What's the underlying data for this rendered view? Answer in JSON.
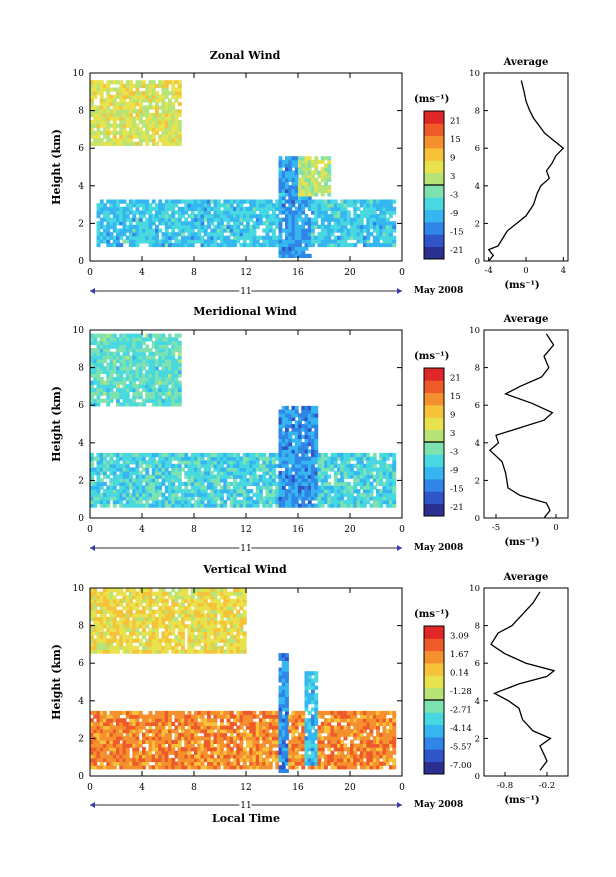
{
  "colors": {
    "scale": [
      "#2b2f8f",
      "#2f55c9",
      "#2f86e6",
      "#36b6f0",
      "#48d8e0",
      "#7ee2b0",
      "#b6e478",
      "#e8e24c",
      "#f6c23a",
      "#f5902e",
      "#ee5a2a",
      "#e02626"
    ]
  },
  "chart_data": [
    {
      "type": "heatmap",
      "title": "Zonal Wind",
      "ylabel": "Height (km)",
      "xlabel": "",
      "x_ticks": [
        "0",
        "4",
        "8",
        "12",
        "16",
        "20",
        "0"
      ],
      "y_ticks": [
        "0",
        "2",
        "4",
        "6",
        "8",
        "10"
      ],
      "xlim": [
        0,
        24
      ],
      "ylim": [
        0,
        10
      ],
      "date_axis_label": "11",
      "date_label": "May 2008",
      "colorbar": {
        "unit": "(ms⁻¹)",
        "ticks": [
          "21",
          "15",
          "9",
          "3",
          "-3",
          "-9",
          "-15",
          "-21"
        ],
        "range": [
          -24,
          24
        ]
      },
      "profile": {
        "title": "Average",
        "xlabel": "(ms⁻¹)",
        "x_ticks": [
          "-4",
          "0",
          "4"
        ],
        "xlim": [
          -4.5,
          4.5
        ],
        "y_ticks": [
          "0",
          "2",
          "4",
          "6",
          "8",
          "10"
        ],
        "points": [
          [
            -4,
            0
          ],
          [
            -3.5,
            0.3
          ],
          [
            -4,
            0.6
          ],
          [
            -3,
            0.8
          ],
          [
            -2.5,
            1.2
          ],
          [
            -2,
            1.6
          ],
          [
            -1,
            2
          ],
          [
            0,
            2.4
          ],
          [
            0.8,
            3
          ],
          [
            1.2,
            3.6
          ],
          [
            1.6,
            4
          ],
          [
            2.5,
            4.4
          ],
          [
            2.2,
            4.8
          ],
          [
            2.8,
            5.2
          ],
          [
            3.2,
            5.6
          ],
          [
            4,
            6
          ],
          [
            3,
            6.4
          ],
          [
            2,
            6.8
          ],
          [
            1.4,
            7.2
          ],
          [
            0.8,
            7.6
          ],
          [
            0.4,
            8
          ],
          [
            0,
            8.5
          ],
          [
            -0.2,
            9
          ],
          [
            -0.5,
            9.6
          ]
        ]
      },
      "cells_summary": [
        {
          "x": [
            0.5,
            23.5
          ],
          "y": [
            0.8,
            3.2
          ],
          "value": -8
        },
        {
          "x": [
            14.5,
            17
          ],
          "y": [
            0.2,
            5.5
          ],
          "value": -12
        },
        {
          "x": [
            0,
            7
          ],
          "y": [
            6.2,
            9.6
          ],
          "value": 5
        },
        {
          "x": [
            16,
            18.5
          ],
          "y": [
            3.5,
            5.5
          ],
          "value": 2
        }
      ]
    },
    {
      "type": "heatmap",
      "title": "Meridional Wind",
      "ylabel": "Height (km)",
      "xlabel": "",
      "x_ticks": [
        "0",
        "4",
        "8",
        "12",
        "16",
        "20",
        "0"
      ],
      "y_ticks": [
        "0",
        "2",
        "4",
        "6",
        "8",
        "10"
      ],
      "xlim": [
        0,
        24
      ],
      "ylim": [
        0,
        10
      ],
      "date_axis_label": "11",
      "date_label": "May 2008",
      "colorbar": {
        "unit": "(ms⁻¹)",
        "ticks": [
          "21",
          "15",
          "9",
          "3",
          "-3",
          "-9",
          "-15",
          "-21"
        ],
        "range": [
          -24,
          24
        ]
      },
      "profile": {
        "title": "Average",
        "xlabel": "(ms⁻¹)",
        "x_ticks": [
          "-5",
          "0"
        ],
        "xlim": [
          -6,
          1
        ],
        "y_ticks": [
          "0",
          "2",
          "4",
          "6",
          "8",
          "10"
        ],
        "points": [
          [
            -1,
            0
          ],
          [
            -0.5,
            0.4
          ],
          [
            -0.8,
            0.8
          ],
          [
            -3,
            1.2
          ],
          [
            -4,
            1.6
          ],
          [
            -4.2,
            2.4
          ],
          [
            -4.5,
            3
          ],
          [
            -5.5,
            3.6
          ],
          [
            -4.8,
            4
          ],
          [
            -5,
            4.4
          ],
          [
            -3,
            4.8
          ],
          [
            -1,
            5.2
          ],
          [
            -0.3,
            5.6
          ],
          [
            -2,
            6.1
          ],
          [
            -4.2,
            6.6
          ],
          [
            -3,
            7
          ],
          [
            -1.2,
            7.5
          ],
          [
            -0.6,
            8
          ],
          [
            -1,
            8.6
          ],
          [
            -0.2,
            9.2
          ],
          [
            -0.8,
            9.8
          ]
        ]
      },
      "cells_summary": [
        {
          "x": [
            0,
            23.5
          ],
          "y": [
            0.6,
            3.5
          ],
          "value": -6
        },
        {
          "x": [
            14.5,
            17.5
          ],
          "y": [
            0.5,
            6
          ],
          "value": -13
        },
        {
          "x": [
            0,
            7
          ],
          "y": [
            6,
            9.8
          ],
          "value": -4
        }
      ]
    },
    {
      "type": "heatmap",
      "title": "Vertical Wind",
      "ylabel": "Height (km)",
      "xlabel": "Local Time",
      "x_ticks": [
        "0",
        "4",
        "8",
        "12",
        "16",
        "20",
        "0"
      ],
      "y_ticks": [
        "0",
        "2",
        "4",
        "6",
        "8",
        "10"
      ],
      "xlim": [
        0,
        24
      ],
      "ylim": [
        0,
        10
      ],
      "date_axis_label": "11",
      "date_label": "May 2008",
      "colorbar": {
        "unit": "(ms⁻¹)",
        "ticks": [
          "3.09",
          "1.67",
          "0.14",
          "-1.28",
          "-2.71",
          "-4.14",
          "-5.57",
          "-7.00"
        ],
        "range": [
          -7.7,
          3.8
        ]
      },
      "profile": {
        "title": "Average",
        "xlabel": "(ms⁻¹)",
        "x_ticks": [
          "-0.8",
          "-0.2"
        ],
        "xlim": [
          -1.1,
          0.1
        ],
        "y_ticks": [
          "0",
          "2",
          "4",
          "6",
          "8",
          "10"
        ],
        "points": [
          [
            -0.3,
            0.3
          ],
          [
            -0.2,
            0.8
          ],
          [
            -0.25,
            1.2
          ],
          [
            -0.3,
            1.6
          ],
          [
            -0.15,
            2
          ],
          [
            -0.4,
            2.4
          ],
          [
            -0.55,
            3
          ],
          [
            -0.6,
            3.6
          ],
          [
            -0.75,
            4
          ],
          [
            -0.95,
            4.4
          ],
          [
            -0.6,
            4.9
          ],
          [
            -0.2,
            5.3
          ],
          [
            -0.1,
            5.6
          ],
          [
            -0.5,
            6
          ],
          [
            -0.8,
            6.5
          ],
          [
            -1,
            7
          ],
          [
            -0.9,
            7.6
          ],
          [
            -0.7,
            8
          ],
          [
            -0.55,
            8.6
          ],
          [
            -0.4,
            9.2
          ],
          [
            -0.3,
            9.8
          ]
        ]
      },
      "cells_summary": [
        {
          "x": [
            0,
            23.5
          ],
          "y": [
            0.3,
            3.5
          ],
          "value": 1.5
        },
        {
          "x": [
            14.5,
            15.3
          ],
          "y": [
            0.2,
            6.5
          ],
          "value": -5
        },
        {
          "x": [
            16.5,
            17.5
          ],
          "y": [
            0.5,
            5.5
          ],
          "value": -4
        },
        {
          "x": [
            0,
            12
          ],
          "y": [
            6.5,
            10
          ],
          "value": -0.3
        }
      ]
    }
  ]
}
